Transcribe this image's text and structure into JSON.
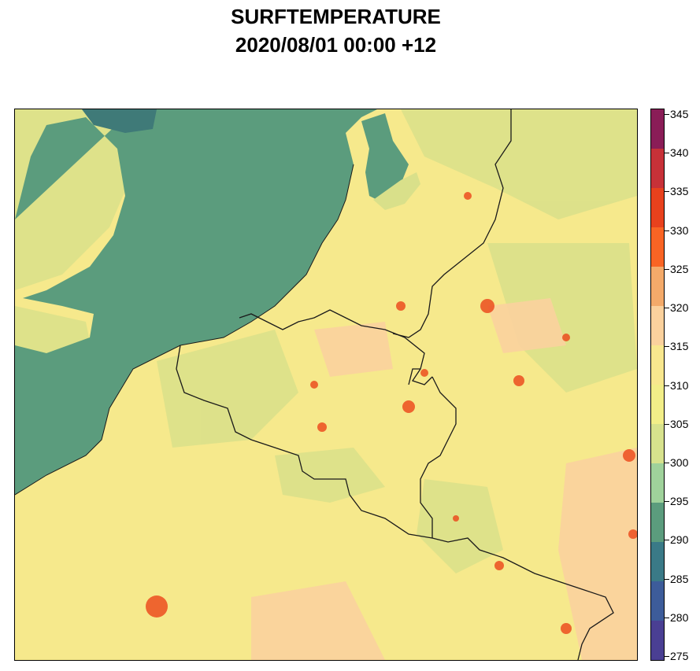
{
  "header": {
    "title": "SURFTEMPERATURE",
    "subtitle": "2020/08/01 00:00 +12"
  },
  "colorbar": {
    "levels": [
      {
        "value": "275",
        "color": "#4a3f93"
      },
      {
        "value": "280",
        "color": "#3d5c9a"
      },
      {
        "value": "285",
        "color": "#3a7a87"
      },
      {
        "value": "290",
        "color": "#5b9c7d"
      },
      {
        "value": "295",
        "color": "#9fd29b"
      },
      {
        "value": "300",
        "color": "#d7e28d"
      },
      {
        "value": "305",
        "color": "#f2ee88"
      },
      {
        "value": "310",
        "color": "#f8e78e"
      },
      {
        "value": "315",
        "color": "#fbd19d"
      },
      {
        "value": "320",
        "color": "#f4aa6a"
      },
      {
        "value": "325",
        "color": "#f96424"
      },
      {
        "value": "330",
        "color": "#e8411d"
      },
      {
        "value": "335",
        "color": "#c73138"
      },
      {
        "value": "340",
        "color": "#8a1d57"
      },
      {
        "value": "345",
        "color": ""
      }
    ]
  },
  "colors": {
    "sea": "#5b9c7d",
    "sea_dark": "#3f7a78",
    "land_base": "#f6e98c",
    "land_green": "#d9e08a",
    "land_warm": "#fbd19d",
    "urban": "#ec4e1f",
    "border": "#1a1a1a"
  }
}
